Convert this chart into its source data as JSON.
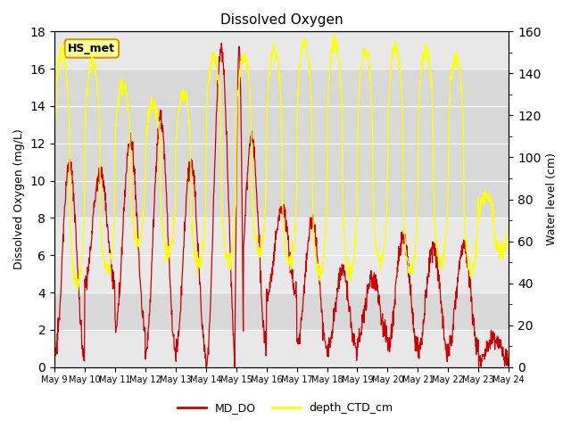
{
  "title": "Dissolved Oxygen",
  "ylabel_left": "Dissolved Oxygen (mg/L)",
  "ylabel_right": "Water level (cm)",
  "ylim_left": [
    0,
    18
  ],
  "ylim_right": [
    0,
    160
  ],
  "yticks_left": [
    0,
    2,
    4,
    6,
    8,
    10,
    12,
    14,
    16,
    18
  ],
  "yticks_right": [
    0,
    20,
    40,
    60,
    80,
    100,
    120,
    140,
    160
  ],
  "x_tick_labels": [
    "May 9",
    "May 10",
    "May 11",
    "May 12",
    "May 13",
    "May 14",
    "May 15",
    "May 16",
    "May 17",
    "May 18",
    "May 19",
    "May 20",
    "May 21",
    "May 22",
    "May 23",
    "May 24"
  ],
  "color_DO": "#cc0000",
  "color_depth": "#ffff00",
  "color_background": "#e8e8e8",
  "color_shaded_band1": "#d8d8d8",
  "color_shaded_band2": "#d8d8d8",
  "legend_label_DO": "MD_DO",
  "legend_label_depth": "depth_CTD_cm",
  "annotation_text": "HS_met",
  "annotation_bbox_facecolor": "#ffff99",
  "annotation_bbox_edgecolor": "#cc9900",
  "n_days": 15,
  "n_points_per_day": 96,
  "figsize": [
    6.4,
    4.8
  ],
  "dpi": 100
}
